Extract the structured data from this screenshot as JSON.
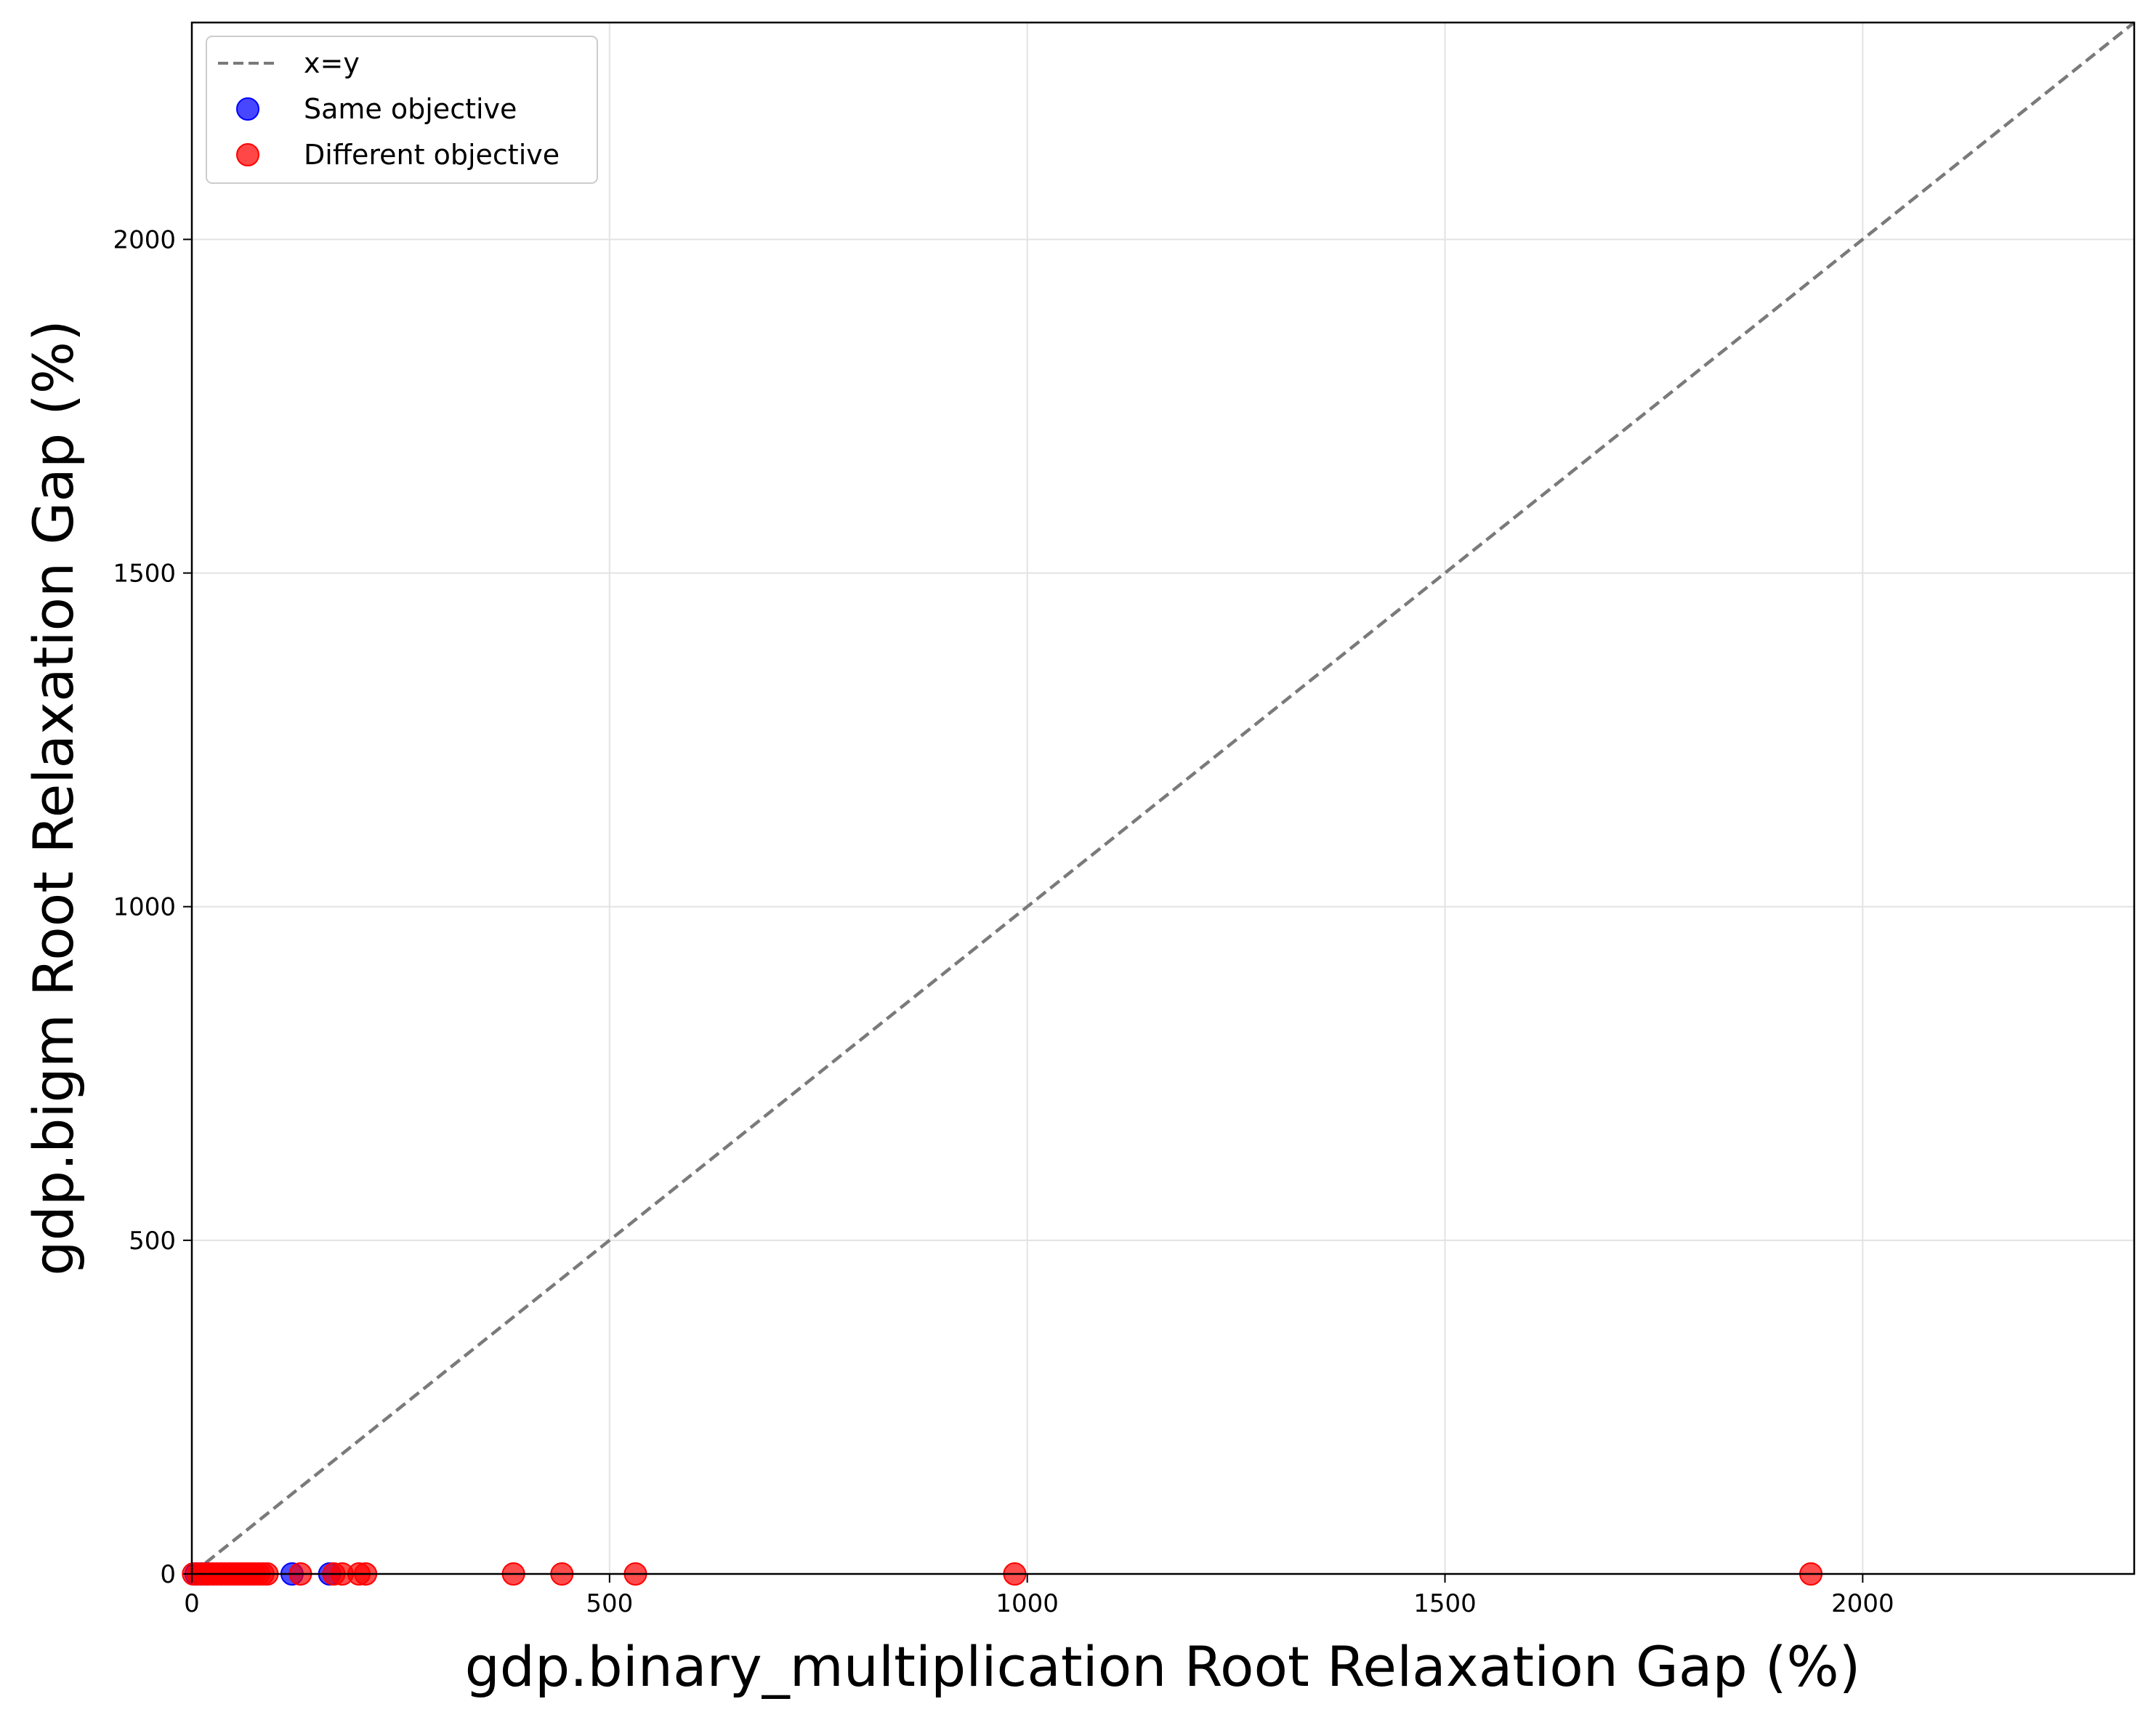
{
  "chart_data": {
    "type": "scatter",
    "title": "",
    "xlabel": "gdp.binary_multiplication Root Relaxation Gap (%)",
    "ylabel": "gdp.bigm Root Relaxation Gap (%)",
    "xlim": [
      0,
      2325
    ],
    "ylim": [
      0,
      2325
    ],
    "xticks": [
      0,
      500,
      1000,
      1500,
      2000
    ],
    "yticks": [
      0,
      500,
      1000,
      1500,
      2000
    ],
    "xtick_labels": [
      "0",
      "500",
      "1000",
      "1500",
      "2000"
    ],
    "ytick_labels": [
      "0",
      "500",
      "1000",
      "1500",
      "2000"
    ],
    "grid": true,
    "legend_position": "top-left",
    "reference_line": {
      "name": "x=y",
      "style": "dashed",
      "color": "#7a7a7a"
    },
    "series": [
      {
        "name": "Same objective",
        "color": "#0000ff",
        "points": [
          [
            5,
            0
          ],
          [
            12,
            0
          ],
          [
            18,
            0
          ],
          [
            120,
            0
          ],
          [
            165,
            0
          ]
        ]
      },
      {
        "name": "Different objective",
        "color": "#ff0000",
        "points": [
          [
            2,
            0
          ],
          [
            8,
            0
          ],
          [
            14,
            0
          ],
          [
            20,
            0
          ],
          [
            25,
            0
          ],
          [
            30,
            0
          ],
          [
            35,
            0
          ],
          [
            40,
            0
          ],
          [
            45,
            0
          ],
          [
            50,
            0
          ],
          [
            55,
            0
          ],
          [
            60,
            0
          ],
          [
            65,
            0
          ],
          [
            70,
            0
          ],
          [
            75,
            0
          ],
          [
            80,
            0
          ],
          [
            85,
            0
          ],
          [
            90,
            0
          ],
          [
            130,
            0
          ],
          [
            170,
            0
          ],
          [
            180,
            0
          ],
          [
            200,
            0
          ],
          [
            208,
            0
          ],
          [
            385,
            0
          ],
          [
            443,
            0
          ],
          [
            531,
            0
          ],
          [
            985,
            0
          ],
          [
            1938,
            0
          ]
        ]
      }
    ]
  }
}
